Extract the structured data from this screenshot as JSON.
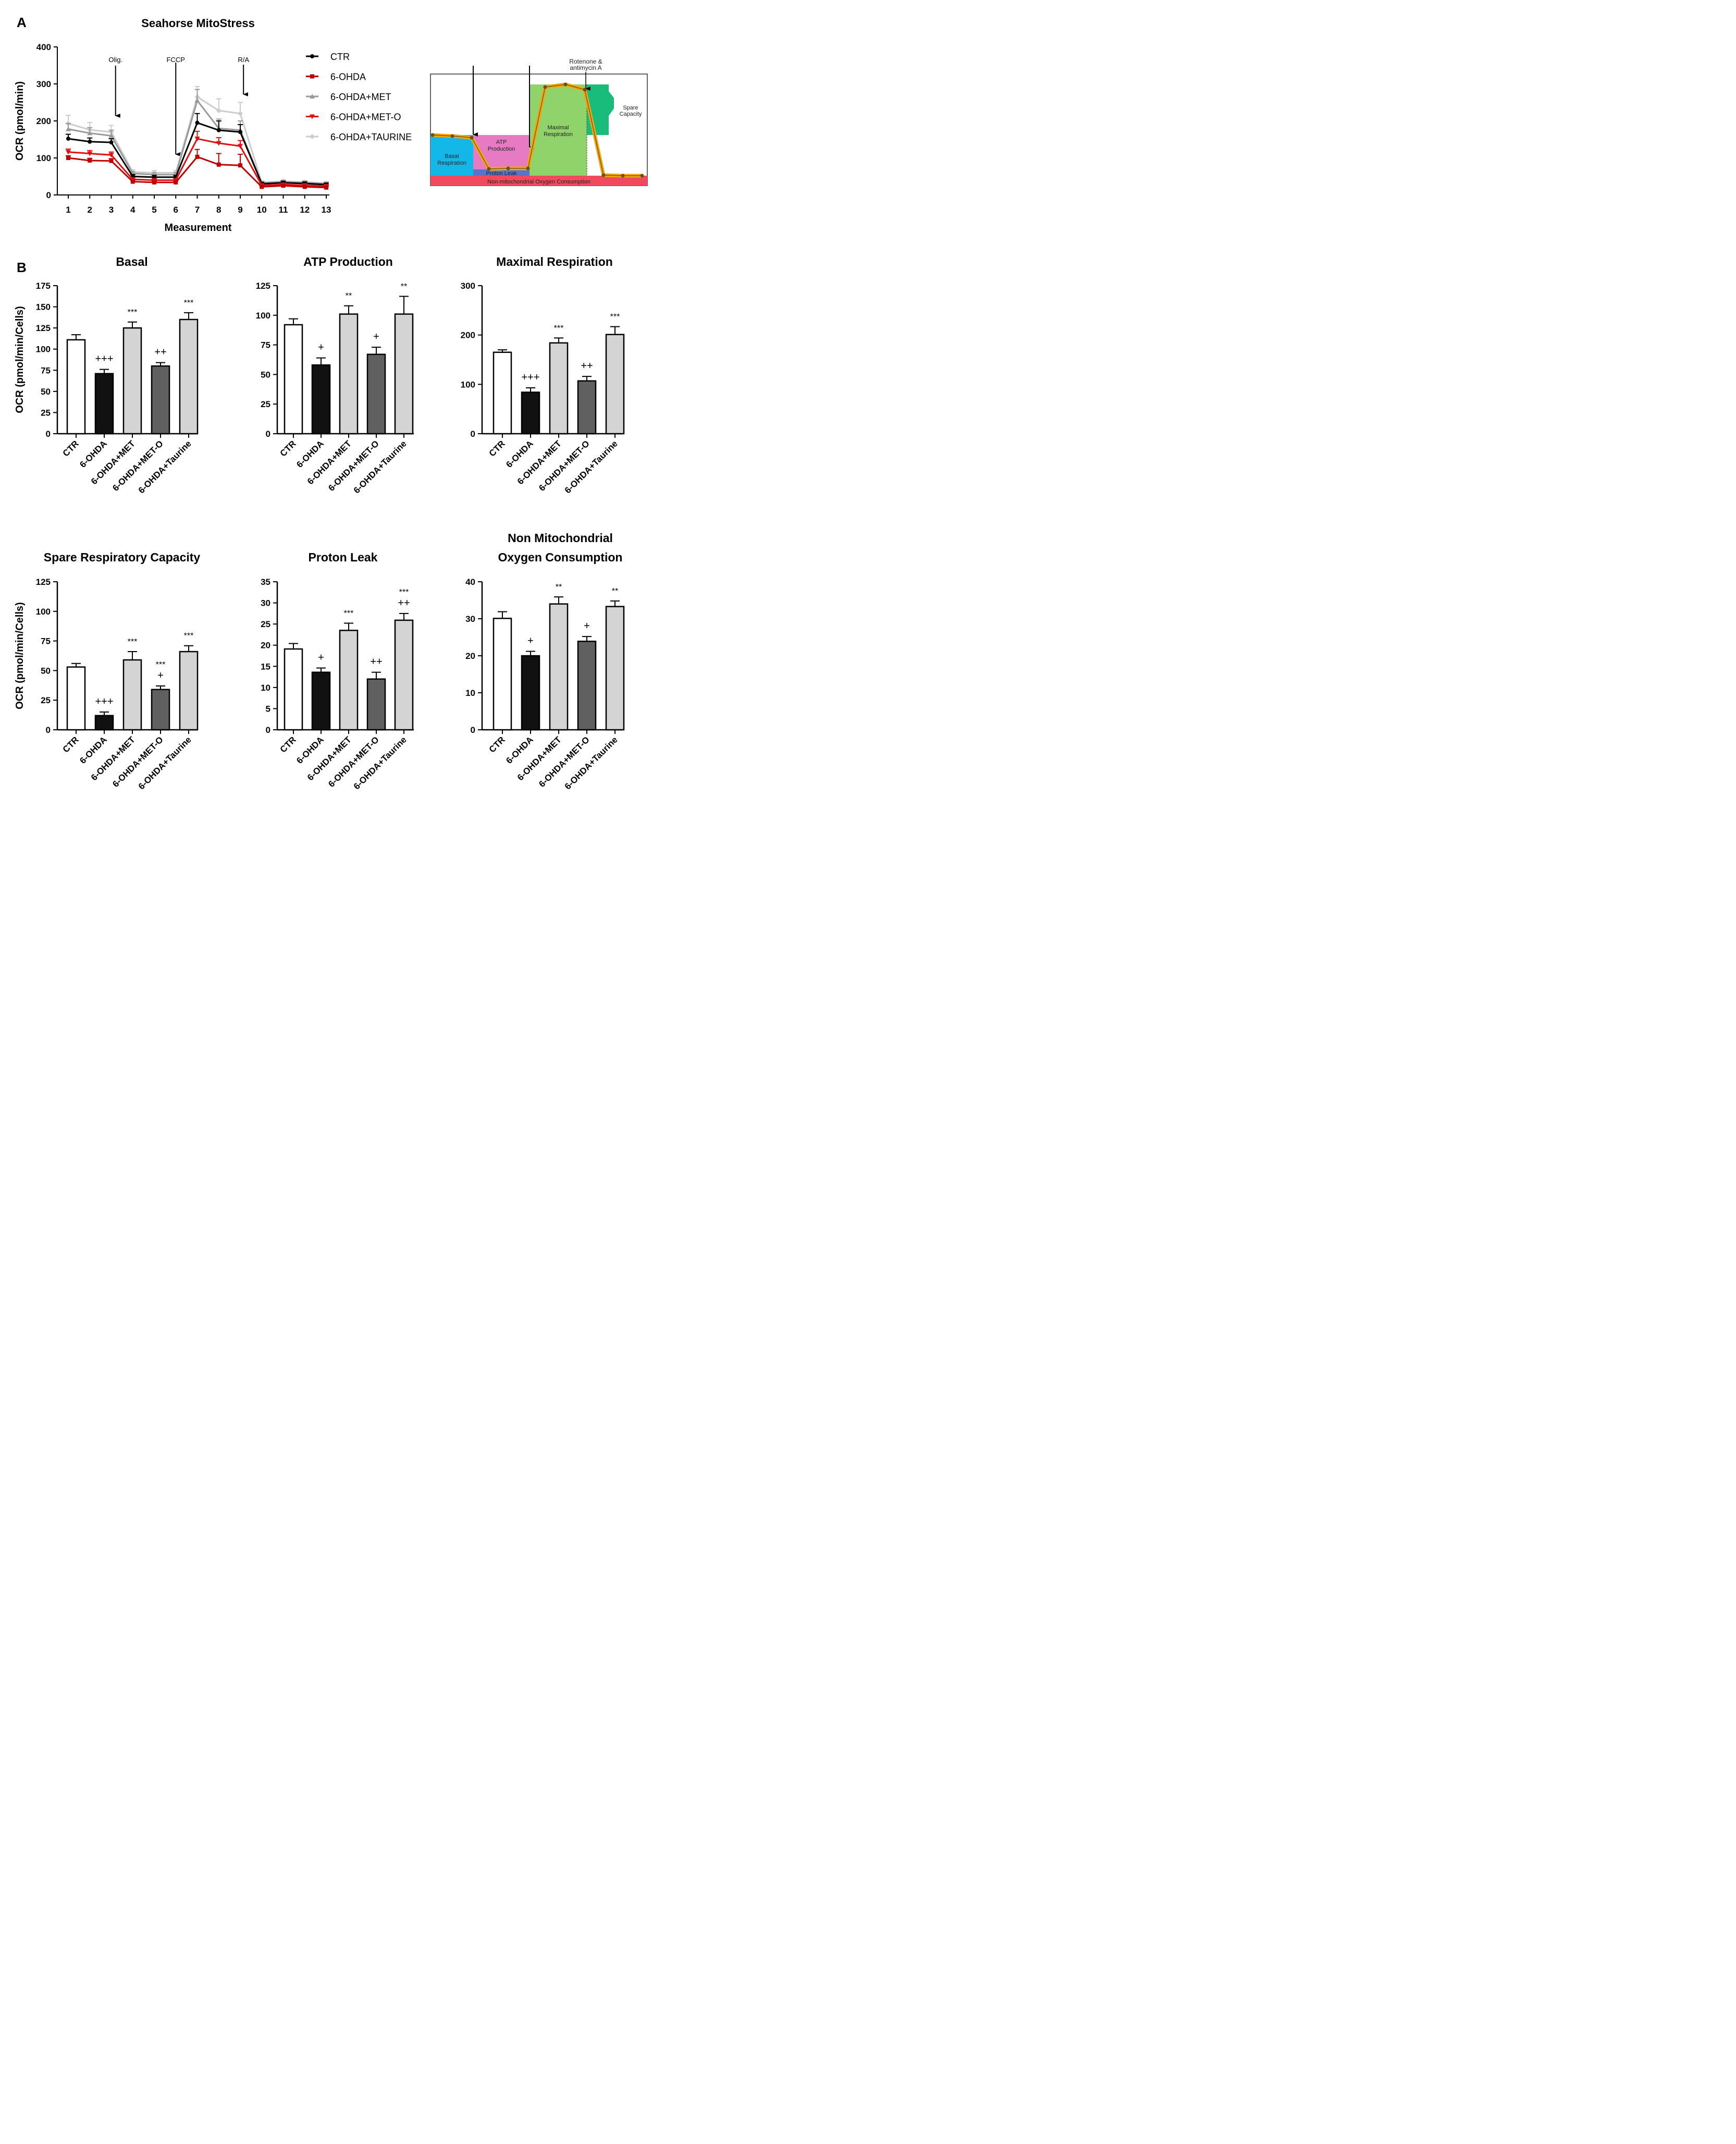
{
  "panel_labels": {
    "a": "A",
    "b": "B"
  },
  "colors": {
    "ctr": "#000000",
    "ohda": "#c00000",
    "met": "#999999",
    "meto": "#e01010",
    "taurine": "#cccccc",
    "bar_ctr": "#ffffff",
    "bar_ohda": "#111111",
    "bar_light": "#d4d4d4",
    "bar_dark": "#606060"
  },
  "chart_data": [
    {
      "id": "seahorse",
      "type": "line",
      "title": "Seahorse  MitoStress",
      "xlabel": "Measurement",
      "ylabel": "OCR (pmol/min)",
      "xlim": [
        1,
        13
      ],
      "ylim": [
        0,
        400
      ],
      "yticks": [
        0,
        100,
        200,
        300,
        400
      ],
      "x": [
        1,
        2,
        3,
        4,
        5,
        6,
        7,
        8,
        9,
        10,
        11,
        12,
        13
      ],
      "annotations": [
        {
          "label": "Olig.",
          "x": 3.2
        },
        {
          "label": "FCCP",
          "x": 6
        },
        {
          "label": "R/A",
          "x": 9.15
        }
      ],
      "series": [
        {
          "name": "CTR",
          "key": "ctr",
          "marker": "circle",
          "values": [
            152,
            144,
            142,
            50,
            48,
            48,
            195,
            175,
            170,
            30,
            33,
            31,
            28
          ],
          "errors": [
            12,
            10,
            10,
            5,
            5,
            5,
            25,
            25,
            20,
            4,
            4,
            4,
            4
          ]
        },
        {
          "name": "6-OHDA",
          "key": "ohda",
          "marker": "square",
          "values": [
            100,
            93,
            92,
            36,
            34,
            34,
            103,
            82,
            80,
            22,
            25,
            22,
            20
          ],
          "errors": [
            6,
            6,
            6,
            4,
            4,
            4,
            20,
            30,
            30,
            3,
            3,
            3,
            3
          ]
        },
        {
          "name": "6-OHDA+MET",
          "key": "met",
          "marker": "triangle",
          "values": [
            178,
            167,
            160,
            58,
            55,
            55,
            255,
            180,
            175,
            32,
            35,
            33,
            30
          ],
          "errors": [
            15,
            15,
            15,
            5,
            5,
            5,
            30,
            25,
            25,
            4,
            4,
            4,
            4
          ]
        },
        {
          "name": "6-OHDA+MET-O",
          "key": "meto",
          "marker": "triangle-down",
          "values": [
            116,
            112,
            108,
            42,
            40,
            40,
            152,
            140,
            132,
            26,
            28,
            26,
            24
          ],
          "errors": [
            8,
            8,
            8,
            4,
            4,
            4,
            20,
            15,
            15,
            3,
            3,
            3,
            3
          ]
        },
        {
          "name": "6-OHDA+TAURINE",
          "key": "taurine",
          "marker": "diamond",
          "values": [
            193,
            176,
            170,
            62,
            60,
            60,
            265,
            228,
            220,
            34,
            37,
            35,
            32
          ],
          "errors": [
            22,
            20,
            18,
            6,
            6,
            6,
            28,
            32,
            30,
            4,
            4,
            4,
            4
          ]
        }
      ]
    },
    {
      "id": "schematic",
      "type": "diagram",
      "top_label_1": "Rotenone &",
      "top_label_2": "antimycin A",
      "regions": {
        "basal_1": "Basal",
        "basal_2": "Respiration",
        "atp_1": "ATP",
        "atp_2": "Production",
        "maximal_1": "Maximal",
        "maximal_2": "Respiration",
        "spare_1": "Spare",
        "spare_2": "Capacity",
        "proton": "Proton Leak",
        "nonmito": "Non-mitochondrial Oxygen Consumption"
      },
      "colors": {
        "basal": "#13b8e8",
        "atp": "#e67ac3",
        "maximal": "#8fd36a",
        "spare": "#19bc7a",
        "proton": "#5b74c9",
        "nonmito": "#f04a5e",
        "trace": "#f2a70f"
      }
    },
    {
      "id": "basal",
      "type": "bar",
      "title": "Basal",
      "ylabel": "OCR (pmol/min/Cells)",
      "ylim": [
        0,
        175
      ],
      "yticks": [
        0,
        25,
        50,
        75,
        100,
        125,
        150,
        175
      ],
      "categories": [
        "CTR",
        "6-OHDA",
        "6-OHDA+MET",
        "6-OHDA+MET-O",
        "6-OHDA+Taurine"
      ],
      "values": [
        111,
        71,
        125,
        80,
        135
      ],
      "errors": [
        6,
        5,
        7,
        4,
        8
      ],
      "labels": [
        [],
        [
          "+++"
        ],
        [
          "***"
        ],
        [
          "++"
        ],
        [
          "***"
        ]
      ]
    },
    {
      "id": "atp",
      "type": "bar",
      "title": "ATP Production",
      "ylabel": "",
      "ylim": [
        0,
        125
      ],
      "yticks": [
        0,
        25,
        50,
        75,
        100,
        125
      ],
      "categories": [
        "CTR",
        "6-OHDA",
        "6-OHDA+MET",
        "6-OHDA+MET-O",
        "6-OHDA+Taurine"
      ],
      "values": [
        92,
        58,
        101,
        67,
        101
      ],
      "errors": [
        5,
        6,
        7,
        6,
        15
      ],
      "labels": [
        [],
        [
          "+"
        ],
        [
          "**"
        ],
        [
          "+"
        ],
        [
          "**"
        ]
      ]
    },
    {
      "id": "maximal",
      "type": "bar",
      "title": "Maximal Respiration",
      "ylabel": "",
      "ylim": [
        0,
        300
      ],
      "yticks": [
        0,
        100,
        200,
        300
      ],
      "categories": [
        "CTR",
        "6-OHDA",
        "6-OHDA+MET",
        "6-OHDA+MET-O",
        "6-OHDA+Taurine"
      ],
      "values": [
        165,
        84,
        184,
        107,
        201
      ],
      "errors": [
        5,
        9,
        10,
        9,
        16
      ],
      "labels": [
        [],
        [
          "+++"
        ],
        [
          "***"
        ],
        [
          "++"
        ],
        [
          "***"
        ]
      ]
    },
    {
      "id": "spare",
      "type": "bar",
      "title": "Spare Respiratory Capacity",
      "ylabel": "OCR (pmol/min/Cells)",
      "ylim": [
        0,
        125
      ],
      "yticks": [
        0,
        25,
        50,
        75,
        100,
        125
      ],
      "categories": [
        "CTR",
        "6-OHDA",
        "6-OHDA+MET",
        "6-OHDA+MET-O",
        "6-OHDA+Taurine"
      ],
      "values": [
        53,
        12,
        59,
        34,
        66
      ],
      "errors": [
        3,
        3,
        7,
        3,
        5
      ],
      "labels": [
        [],
        [
          "+++"
        ],
        [
          "***"
        ],
        [
          "***",
          "+"
        ],
        [
          "***"
        ]
      ]
    },
    {
      "id": "proton",
      "type": "bar",
      "title": "Proton Leak",
      "ylabel": "",
      "ylim": [
        0,
        35
      ],
      "yticks": [
        0,
        5,
        10,
        15,
        20,
        25,
        30,
        35
      ],
      "categories": [
        "CTR",
        "6-OHDA",
        "6-OHDA+MET",
        "6-OHDA+MET-O",
        "6-OHDA+Taurine"
      ],
      "values": [
        19.1,
        13.6,
        23.5,
        12.0,
        25.9
      ],
      "errors": [
        1.3,
        1.0,
        1.7,
        1.6,
        1.6
      ],
      "labels": [
        [],
        [
          "+"
        ],
        [
          "***"
        ],
        [
          "++"
        ],
        [
          "***",
          "++"
        ]
      ]
    },
    {
      "id": "nonmito",
      "type": "bar",
      "title": "Non Mitochondrial",
      "title2": "Oxygen Consumption",
      "ylabel": "",
      "ylim": [
        0,
        40
      ],
      "yticks": [
        0,
        10,
        20,
        30,
        40
      ],
      "categories": [
        "CTR",
        "6-OHDA",
        "6-OHDA+MET",
        "6-OHDA+MET-O",
        "6-OHDA+Taurine"
      ],
      "values": [
        30.1,
        20.0,
        34.0,
        23.9,
        33.3
      ],
      "errors": [
        1.8,
        1.2,
        1.9,
        1.3,
        1.5
      ],
      "labels": [
        [],
        [
          "+"
        ],
        [
          "**"
        ],
        [
          "+"
        ],
        [
          "**"
        ]
      ]
    }
  ]
}
